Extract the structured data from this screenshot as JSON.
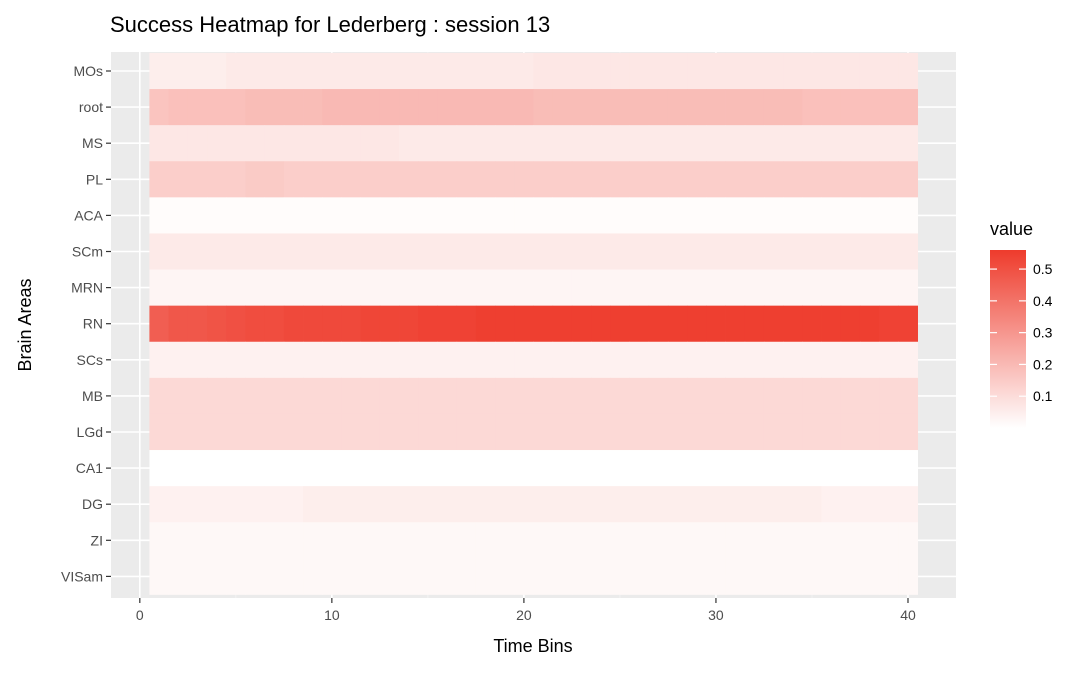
{
  "chart_data": {
    "type": "heatmap",
    "title": "Success Heatmap for Lederberg : session 13",
    "xlabel": "Time Bins",
    "ylabel": "Brain Areas",
    "xlim": [
      0,
      40
    ],
    "x_ticks": [
      0,
      10,
      20,
      30,
      40
    ],
    "x_tick_labels": [
      "0",
      "10",
      "20",
      "30",
      "40"
    ],
    "x_bins": 40,
    "y_categories": [
      "MOs",
      "root",
      "MS",
      "PL",
      "ACA",
      "SCm",
      "MRN",
      "RN",
      "SCs",
      "MB",
      "LGd",
      "CA1",
      "DG",
      "ZI",
      "VISam"
    ],
    "grid": true,
    "legend": {
      "title": "value",
      "placement": "right",
      "ticks": [
        0.1,
        0.2,
        0.3,
        0.4,
        0.5
      ],
      "tick_labels": [
        "0.1",
        "0.2",
        "0.3",
        "0.4",
        "0.5"
      ],
      "range": [
        0.0,
        0.56
      ],
      "low_color": "#ffffff",
      "high_color": "#ee3b2c"
    },
    "rows": [
      {
        "area": "MOs",
        "values": [
          0.05,
          0.05,
          0.05,
          0.05,
          0.06,
          0.06,
          0.06,
          0.06,
          0.06,
          0.06,
          0.06,
          0.06,
          0.06,
          0.06,
          0.06,
          0.06,
          0.06,
          0.06,
          0.06,
          0.06,
          0.07,
          0.07,
          0.07,
          0.07,
          0.07,
          0.07,
          0.07,
          0.07,
          0.07,
          0.07,
          0.07,
          0.07,
          0.07,
          0.07,
          0.07,
          0.07,
          0.07,
          0.07,
          0.07,
          0.07
        ]
      },
      {
        "area": "root",
        "values": [
          0.17,
          0.18,
          0.18,
          0.18,
          0.18,
          0.19,
          0.19,
          0.19,
          0.19,
          0.2,
          0.2,
          0.2,
          0.2,
          0.2,
          0.2,
          0.2,
          0.2,
          0.2,
          0.2,
          0.2,
          0.19,
          0.19,
          0.19,
          0.19,
          0.19,
          0.19,
          0.19,
          0.19,
          0.19,
          0.19,
          0.19,
          0.19,
          0.19,
          0.19,
          0.18,
          0.18,
          0.18,
          0.18,
          0.18,
          0.18
        ]
      },
      {
        "area": "MS",
        "values": [
          0.07,
          0.07,
          0.07,
          0.07,
          0.07,
          0.07,
          0.07,
          0.07,
          0.07,
          0.07,
          0.07,
          0.07,
          0.07,
          0.06,
          0.06,
          0.06,
          0.06,
          0.06,
          0.06,
          0.06,
          0.06,
          0.06,
          0.06,
          0.06,
          0.06,
          0.06,
          0.06,
          0.06,
          0.06,
          0.06,
          0.06,
          0.06,
          0.06,
          0.06,
          0.06,
          0.06,
          0.06,
          0.06,
          0.06,
          0.06
        ]
      },
      {
        "area": "PL",
        "values": [
          0.14,
          0.14,
          0.14,
          0.14,
          0.14,
          0.15,
          0.15,
          0.14,
          0.14,
          0.14,
          0.14,
          0.14,
          0.14,
          0.14,
          0.14,
          0.14,
          0.14,
          0.14,
          0.14,
          0.14,
          0.14,
          0.14,
          0.14,
          0.14,
          0.14,
          0.14,
          0.14,
          0.14,
          0.14,
          0.14,
          0.14,
          0.14,
          0.14,
          0.14,
          0.14,
          0.14,
          0.14,
          0.14,
          0.14,
          0.14
        ]
      },
      {
        "area": "ACA",
        "values": [
          0.01,
          0.01,
          0.01,
          0.01,
          0.01,
          0.01,
          0.01,
          0.01,
          0.01,
          0.01,
          0.01,
          0.01,
          0.01,
          0.01,
          0.01,
          0.01,
          0.01,
          0.01,
          0.01,
          0.01,
          0.01,
          0.01,
          0.01,
          0.01,
          0.01,
          0.01,
          0.01,
          0.01,
          0.01,
          0.01,
          0.01,
          0.01,
          0.01,
          0.01,
          0.01,
          0.01,
          0.01,
          0.01,
          0.01,
          0.01
        ]
      },
      {
        "area": "SCm",
        "values": [
          0.06,
          0.06,
          0.06,
          0.06,
          0.06,
          0.06,
          0.06,
          0.06,
          0.06,
          0.06,
          0.06,
          0.06,
          0.06,
          0.06,
          0.06,
          0.06,
          0.06,
          0.06,
          0.06,
          0.06,
          0.06,
          0.06,
          0.06,
          0.06,
          0.06,
          0.06,
          0.06,
          0.06,
          0.06,
          0.06,
          0.06,
          0.06,
          0.06,
          0.06,
          0.06,
          0.06,
          0.06,
          0.06,
          0.06,
          0.06
        ]
      },
      {
        "area": "MRN",
        "values": [
          0.03,
          0.03,
          0.03,
          0.03,
          0.03,
          0.03,
          0.03,
          0.03,
          0.03,
          0.03,
          0.03,
          0.03,
          0.03,
          0.03,
          0.03,
          0.03,
          0.03,
          0.03,
          0.03,
          0.03,
          0.03,
          0.03,
          0.03,
          0.03,
          0.03,
          0.03,
          0.03,
          0.03,
          0.03,
          0.03,
          0.03,
          0.03,
          0.03,
          0.03,
          0.03,
          0.03,
          0.03,
          0.03,
          0.03,
          0.03
        ]
      },
      {
        "area": "RN",
        "values": [
          0.46,
          0.48,
          0.48,
          0.49,
          0.5,
          0.51,
          0.51,
          0.52,
          0.52,
          0.52,
          0.52,
          0.53,
          0.53,
          0.53,
          0.54,
          0.54,
          0.54,
          0.55,
          0.55,
          0.55,
          0.55,
          0.55,
          0.55,
          0.55,
          0.55,
          0.55,
          0.55,
          0.55,
          0.55,
          0.55,
          0.55,
          0.55,
          0.55,
          0.55,
          0.55,
          0.55,
          0.55,
          0.55,
          0.54,
          0.54
        ]
      },
      {
        "area": "SCs",
        "values": [
          0.04,
          0.04,
          0.04,
          0.04,
          0.04,
          0.04,
          0.04,
          0.04,
          0.04,
          0.04,
          0.04,
          0.04,
          0.04,
          0.04,
          0.04,
          0.04,
          0.04,
          0.04,
          0.04,
          0.04,
          0.04,
          0.04,
          0.04,
          0.04,
          0.04,
          0.04,
          0.04,
          0.04,
          0.04,
          0.04,
          0.04,
          0.04,
          0.04,
          0.04,
          0.04,
          0.04,
          0.04,
          0.04,
          0.04,
          0.04
        ]
      },
      {
        "area": "MB",
        "values": [
          0.11,
          0.11,
          0.11,
          0.11,
          0.11,
          0.11,
          0.11,
          0.11,
          0.11,
          0.11,
          0.11,
          0.11,
          0.11,
          0.11,
          0.11,
          0.11,
          0.11,
          0.11,
          0.11,
          0.11,
          0.11,
          0.11,
          0.11,
          0.11,
          0.11,
          0.11,
          0.11,
          0.11,
          0.11,
          0.11,
          0.11,
          0.11,
          0.11,
          0.11,
          0.11,
          0.11,
          0.11,
          0.11,
          0.11,
          0.11
        ]
      },
      {
        "area": "LGd",
        "values": [
          0.11,
          0.11,
          0.11,
          0.11,
          0.11,
          0.11,
          0.11,
          0.11,
          0.11,
          0.11,
          0.11,
          0.11,
          0.11,
          0.11,
          0.11,
          0.11,
          0.11,
          0.11,
          0.11,
          0.11,
          0.11,
          0.11,
          0.11,
          0.11,
          0.11,
          0.11,
          0.11,
          0.11,
          0.11,
          0.11,
          0.11,
          0.11,
          0.11,
          0.11,
          0.11,
          0.11,
          0.11,
          0.11,
          0.11,
          0.11
        ]
      },
      {
        "area": "CA1",
        "values": [
          0.0,
          0.0,
          0.0,
          0.0,
          0.0,
          0.0,
          0.0,
          0.0,
          0.0,
          0.0,
          0.0,
          0.0,
          0.0,
          0.0,
          0.0,
          0.0,
          0.0,
          0.0,
          0.0,
          0.0,
          0.0,
          0.0,
          0.0,
          0.0,
          0.0,
          0.0,
          0.0,
          0.0,
          0.0,
          0.0,
          0.0,
          0.0,
          0.0,
          0.0,
          0.0,
          0.0,
          0.0,
          0.0,
          0.0,
          0.0
        ]
      },
      {
        "area": "DG",
        "values": [
          0.04,
          0.04,
          0.04,
          0.04,
          0.04,
          0.04,
          0.04,
          0.04,
          0.05,
          0.05,
          0.05,
          0.05,
          0.05,
          0.05,
          0.05,
          0.05,
          0.05,
          0.05,
          0.05,
          0.05,
          0.05,
          0.05,
          0.05,
          0.05,
          0.05,
          0.05,
          0.05,
          0.05,
          0.05,
          0.05,
          0.05,
          0.05,
          0.05,
          0.05,
          0.05,
          0.04,
          0.04,
          0.04,
          0.04,
          0.04
        ]
      },
      {
        "area": "ZI",
        "values": [
          0.02,
          0.02,
          0.02,
          0.02,
          0.02,
          0.02,
          0.02,
          0.02,
          0.02,
          0.02,
          0.02,
          0.02,
          0.02,
          0.02,
          0.02,
          0.02,
          0.02,
          0.02,
          0.02,
          0.02,
          0.02,
          0.02,
          0.02,
          0.02,
          0.02,
          0.02,
          0.02,
          0.02,
          0.02,
          0.02,
          0.02,
          0.02,
          0.02,
          0.02,
          0.02,
          0.02,
          0.02,
          0.02,
          0.02,
          0.02
        ]
      },
      {
        "area": "VISam",
        "values": [
          0.02,
          0.02,
          0.02,
          0.02,
          0.02,
          0.02,
          0.02,
          0.02,
          0.02,
          0.02,
          0.02,
          0.02,
          0.02,
          0.02,
          0.02,
          0.02,
          0.02,
          0.02,
          0.02,
          0.02,
          0.02,
          0.02,
          0.02,
          0.02,
          0.02,
          0.02,
          0.02,
          0.02,
          0.02,
          0.02,
          0.02,
          0.02,
          0.02,
          0.02,
          0.02,
          0.02,
          0.02,
          0.02,
          0.02,
          0.02
        ]
      }
    ]
  }
}
